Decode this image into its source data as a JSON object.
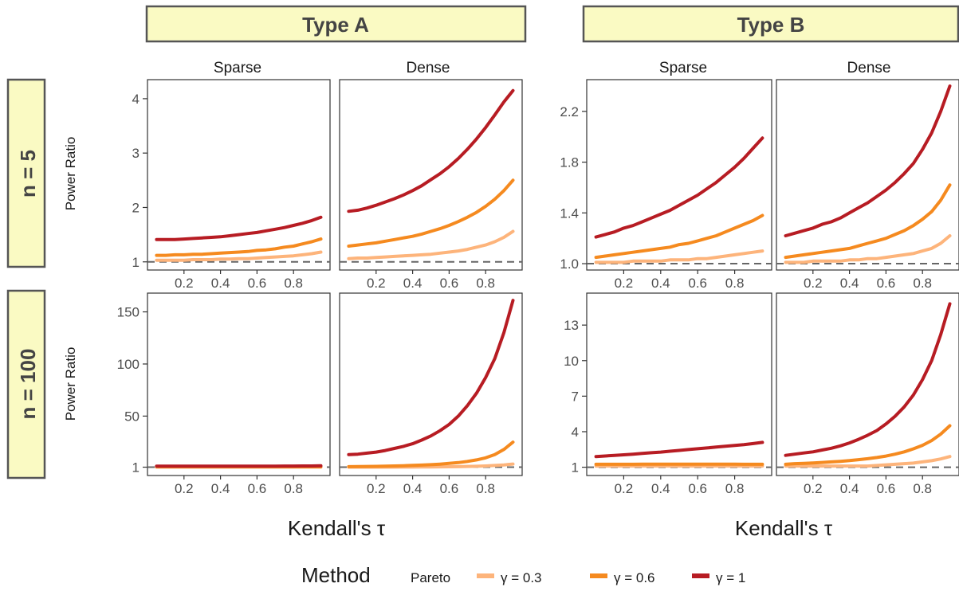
{
  "group_headers": [
    "Type A",
    "Type B"
  ],
  "row_headers": [
    "n = 5",
    "n = 100"
  ],
  "ylabel": "Power Ratio",
  "xlabel": "Kendall's τ",
  "legend": {
    "title": "Method",
    "subtitle": "Pareto",
    "entries": [
      {
        "label": "γ = 0.3",
        "color": "#fdb47b"
      },
      {
        "label": "γ = 0.6",
        "color": "#f58a1f"
      },
      {
        "label": "γ = 1",
        "color": "#b71c23"
      }
    ]
  },
  "chart_data": {
    "type": "line",
    "x": [
      0.05,
      0.1,
      0.15,
      0.2,
      0.25,
      0.3,
      0.35,
      0.4,
      0.45,
      0.5,
      0.55,
      0.6,
      0.65,
      0.7,
      0.75,
      0.8,
      0.85,
      0.9,
      0.95
    ],
    "xlim": [
      0,
      1
    ],
    "xticks": [
      "0.2",
      "0.4",
      "0.6",
      "0.8"
    ],
    "reference_line": 1,
    "panels": [
      {
        "group": "Type A",
        "row": "n = 5",
        "column": "Sparse",
        "ylim": [
          0.85,
          4.35
        ],
        "yticks": [
          1,
          2,
          3,
          4
        ],
        "series": [
          {
            "name": "γ = 0.3",
            "values": [
              1.03,
              1.03,
              1.03,
              1.03,
              1.04,
              1.04,
              1.04,
              1.05,
              1.05,
              1.06,
              1.06,
              1.07,
              1.08,
              1.09,
              1.1,
              1.11,
              1.13,
              1.15,
              1.18
            ]
          },
          {
            "name": "γ = 0.6",
            "values": [
              1.12,
              1.12,
              1.13,
              1.13,
              1.14,
              1.14,
              1.15,
              1.16,
              1.17,
              1.18,
              1.19,
              1.21,
              1.22,
              1.24,
              1.27,
              1.29,
              1.33,
              1.37,
              1.42
            ]
          },
          {
            "name": "γ = 1",
            "values": [
              1.41,
              1.41,
              1.41,
              1.42,
              1.43,
              1.44,
              1.45,
              1.46,
              1.48,
              1.5,
              1.52,
              1.54,
              1.57,
              1.6,
              1.63,
              1.67,
              1.71,
              1.76,
              1.82
            ]
          }
        ]
      },
      {
        "group": "Type A",
        "row": "n = 5",
        "column": "Dense",
        "ylim": [
          0.85,
          4.35
        ],
        "yticks": [
          1,
          2,
          3,
          4
        ],
        "series": [
          {
            "name": "γ = 0.3",
            "values": [
              1.06,
              1.07,
              1.07,
              1.08,
              1.09,
              1.1,
              1.11,
              1.12,
              1.13,
              1.14,
              1.16,
              1.18,
              1.2,
              1.23,
              1.27,
              1.31,
              1.37,
              1.45,
              1.56
            ]
          },
          {
            "name": "γ = 0.6",
            "values": [
              1.29,
              1.31,
              1.33,
              1.35,
              1.38,
              1.41,
              1.44,
              1.47,
              1.51,
              1.56,
              1.61,
              1.67,
              1.74,
              1.82,
              1.91,
              2.02,
              2.15,
              2.31,
              2.5
            ]
          },
          {
            "name": "γ = 1",
            "values": [
              1.93,
              1.95,
              1.99,
              2.04,
              2.1,
              2.16,
              2.23,
              2.31,
              2.4,
              2.51,
              2.62,
              2.75,
              2.9,
              3.07,
              3.26,
              3.47,
              3.7,
              3.94,
              4.15
            ]
          }
        ]
      },
      {
        "group": "Type B",
        "row": "n = 5",
        "column": "Sparse",
        "ylim": [
          0.95,
          2.45
        ],
        "yticks": [
          1.0,
          1.4,
          1.8,
          2.2
        ],
        "ytick_labels": [
          "1.0",
          "1.4",
          "1.8",
          "2.2"
        ],
        "series": [
          {
            "name": "γ = 0.3",
            "values": [
              1.01,
              1.01,
              1.01,
              1.01,
              1.02,
              1.02,
              1.02,
              1.02,
              1.03,
              1.03,
              1.03,
              1.04,
              1.04,
              1.05,
              1.06,
              1.07,
              1.08,
              1.09,
              1.1
            ]
          },
          {
            "name": "γ = 0.6",
            "values": [
              1.05,
              1.06,
              1.07,
              1.08,
              1.09,
              1.1,
              1.11,
              1.12,
              1.13,
              1.15,
              1.16,
              1.18,
              1.2,
              1.22,
              1.25,
              1.28,
              1.31,
              1.34,
              1.38
            ]
          },
          {
            "name": "γ = 1",
            "values": [
              1.21,
              1.23,
              1.25,
              1.28,
              1.3,
              1.33,
              1.36,
              1.39,
              1.42,
              1.46,
              1.5,
              1.54,
              1.59,
              1.64,
              1.7,
              1.76,
              1.83,
              1.91,
              1.99
            ]
          }
        ]
      },
      {
        "group": "Type B",
        "row": "n = 5",
        "column": "Dense",
        "ylim": [
          0.95,
          2.45
        ],
        "yticks": [
          1.0,
          1.4,
          1.8,
          2.2
        ],
        "ytick_labels": [
          "1.0",
          "1.4",
          "1.8",
          "2.2"
        ],
        "series": [
          {
            "name": "γ = 0.3",
            "values": [
              1.01,
              1.01,
              1.01,
              1.02,
              1.02,
              1.02,
              1.02,
              1.03,
              1.03,
              1.04,
              1.04,
              1.05,
              1.06,
              1.07,
              1.08,
              1.1,
              1.12,
              1.16,
              1.22
            ]
          },
          {
            "name": "γ = 0.6",
            "values": [
              1.05,
              1.06,
              1.07,
              1.08,
              1.09,
              1.1,
              1.11,
              1.12,
              1.14,
              1.16,
              1.18,
              1.2,
              1.23,
              1.26,
              1.3,
              1.35,
              1.41,
              1.5,
              1.62
            ]
          },
          {
            "name": "γ = 1",
            "values": [
              1.22,
              1.24,
              1.26,
              1.28,
              1.31,
              1.33,
              1.36,
              1.4,
              1.44,
              1.48,
              1.53,
              1.58,
              1.64,
              1.71,
              1.79,
              1.9,
              2.03,
              2.2,
              2.4
            ]
          }
        ]
      },
      {
        "group": "Type A",
        "row": "n = 100",
        "column": "Sparse",
        "ylim": [
          -7,
          168
        ],
        "yticks": [
          1,
          50,
          100,
          150
        ],
        "series": [
          {
            "name": "γ = 0.3",
            "values": [
              1,
              1,
              1,
              1,
              1,
              1,
              1,
              1,
              1,
              1,
              1,
              1,
              1,
              1,
              1,
              1,
              1,
              1,
              1
            ]
          },
          {
            "name": "γ = 0.6",
            "values": [
              1.5,
              1.5,
              1.5,
              1.5,
              1.5,
              1.5,
              1.5,
              1.5,
              1.5,
              1.5,
              1.5,
              1.5,
              1.5,
              1.5,
              1.5,
              1.5,
              1.5,
              1.5,
              1.5
            ]
          },
          {
            "name": "γ = 1",
            "values": [
              2,
              2,
              2,
              2,
              2,
              2,
              2,
              2,
              2,
              2,
              2,
              2,
              2,
              2,
              2.1,
              2.1,
              2.2,
              2.2,
              2.3
            ]
          }
        ]
      },
      {
        "group": "Type A",
        "row": "n = 100",
        "column": "Dense",
        "ylim": [
          -7,
          168
        ],
        "yticks": [
          1,
          50,
          100,
          150
        ],
        "series": [
          {
            "name": "γ = 0.3",
            "values": [
              1,
              1,
              1,
              1,
              1,
              1,
              1.1,
              1.1,
              1.2,
              1.2,
              1.3,
              1.4,
              1.5,
              1.7,
              1.9,
              2.2,
              2.6,
              3.2,
              4
            ]
          },
          {
            "name": "γ = 0.6",
            "values": [
              1.5,
              1.6,
              1.7,
              1.8,
              2,
              2.2,
              2.4,
              2.7,
              3,
              3.4,
              3.9,
              4.6,
              5.4,
              6.5,
              8,
              10,
              13,
              18,
              25
            ]
          },
          {
            "name": "γ = 1",
            "values": [
              13,
              13.5,
              14.5,
              15.5,
              17,
              19,
              21,
              23.5,
              27,
              31,
              36,
              42,
              50,
              60,
              72,
              87,
              105,
              130,
              161
            ]
          }
        ]
      },
      {
        "group": "Type B",
        "row": "n = 100",
        "column": "Sparse",
        "ylim": [
          0.3,
          15.7
        ],
        "yticks": [
          1,
          4,
          7,
          10,
          13
        ],
        "series": [
          {
            "name": "γ = 0.3",
            "values": [
              1.1,
              1.1,
              1.1,
              1.1,
              1.1,
              1.1,
              1.1,
              1.1,
              1.1,
              1.1,
              1.1,
              1.1,
              1.1,
              1.1,
              1.1,
              1.1,
              1.1,
              1.1,
              1.1
            ]
          },
          {
            "name": "γ = 0.6",
            "values": [
              1.25,
              1.25,
              1.25,
              1.25,
              1.25,
              1.26,
              1.26,
              1.26,
              1.26,
              1.26,
              1.26,
              1.26,
              1.26,
              1.26,
              1.26,
              1.26,
              1.25,
              1.25,
              1.25
            ]
          },
          {
            "name": "γ = 1",
            "values": [
              1.9,
              1.95,
              2.0,
              2.05,
              2.1,
              2.16,
              2.22,
              2.28,
              2.35,
              2.42,
              2.49,
              2.56,
              2.63,
              2.7,
              2.77,
              2.84,
              2.91,
              3.0,
              3.1
            ]
          }
        ]
      },
      {
        "group": "Type B",
        "row": "n = 100",
        "column": "Dense",
        "ylim": [
          0.3,
          15.7
        ],
        "yticks": [
          1,
          4,
          7,
          10,
          13
        ],
        "series": [
          {
            "name": "γ = 0.3",
            "values": [
              1.1,
              1.1,
              1.1,
              1.1,
              1.1,
              1.1,
              1.1,
              1.1,
              1.1,
              1.1,
              1.15,
              1.2,
              1.25,
              1.3,
              1.35,
              1.45,
              1.55,
              1.7,
              1.9
            ]
          },
          {
            "name": "γ = 0.6",
            "values": [
              1.25,
              1.3,
              1.33,
              1.36,
              1.4,
              1.45,
              1.5,
              1.56,
              1.64,
              1.72,
              1.82,
              1.94,
              2.1,
              2.3,
              2.55,
              2.85,
              3.25,
              3.8,
              4.5
            ]
          },
          {
            "name": "γ = 1",
            "values": [
              2.0,
              2.1,
              2.2,
              2.3,
              2.45,
              2.6,
              2.8,
              3.05,
              3.35,
              3.7,
              4.1,
              4.65,
              5.3,
              6.1,
              7.1,
              8.4,
              10.0,
              12.2,
              14.8
            ]
          }
        ]
      }
    ]
  }
}
